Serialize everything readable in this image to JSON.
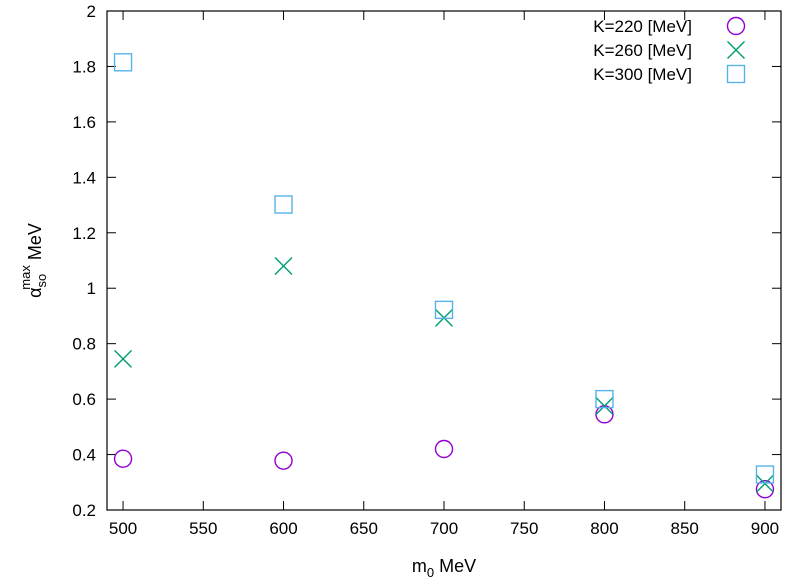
{
  "chart_data": {
    "type": "scatter",
    "title": "",
    "xlabel": {
      "main": "m",
      "sub": "0",
      "rest": " MeV"
    },
    "ylabel": {
      "main": "α",
      "sub": "so",
      "sup": "max",
      "rest": " MeV"
    },
    "xlim": [
      490,
      910
    ],
    "ylim": [
      0.2,
      2.0
    ],
    "xticks": [
      500,
      550,
      600,
      650,
      700,
      750,
      800,
      850,
      900
    ],
    "yticks": [
      0.2,
      0.4,
      0.6,
      0.8,
      1,
      1.2,
      1.4,
      1.6,
      1.8,
      2
    ],
    "xtick_labels": [
      "500",
      "550",
      "600",
      "650",
      "700",
      "750",
      "800",
      "850",
      "900"
    ],
    "ytick_labels": [
      "0.2",
      "0.4",
      "0.6",
      "0.8",
      "1",
      "1.2",
      "1.4",
      "1.6",
      "1.8",
      "2"
    ],
    "grid": false,
    "legend_position": "top-right",
    "series": [
      {
        "name": "K=220 [MeV]",
        "marker": "circle",
        "color": "#9400d3",
        "x": [
          500,
          600,
          700,
          800,
          900
        ],
        "y": [
          0.385,
          0.378,
          0.42,
          0.545,
          0.275
        ]
      },
      {
        "name": "K=260 [MeV]",
        "marker": "x",
        "color": "#009e73",
        "x": [
          500,
          600,
          700,
          800,
          900
        ],
        "y": [
          0.745,
          1.08,
          0.893,
          0.575,
          0.295
        ]
      },
      {
        "name": "K=300 [MeV]",
        "marker": "square",
        "color": "#56b4e9",
        "x": [
          500,
          600,
          700,
          800,
          900
        ],
        "y": [
          1.815,
          1.302,
          0.922,
          0.6,
          0.328
        ]
      }
    ]
  }
}
